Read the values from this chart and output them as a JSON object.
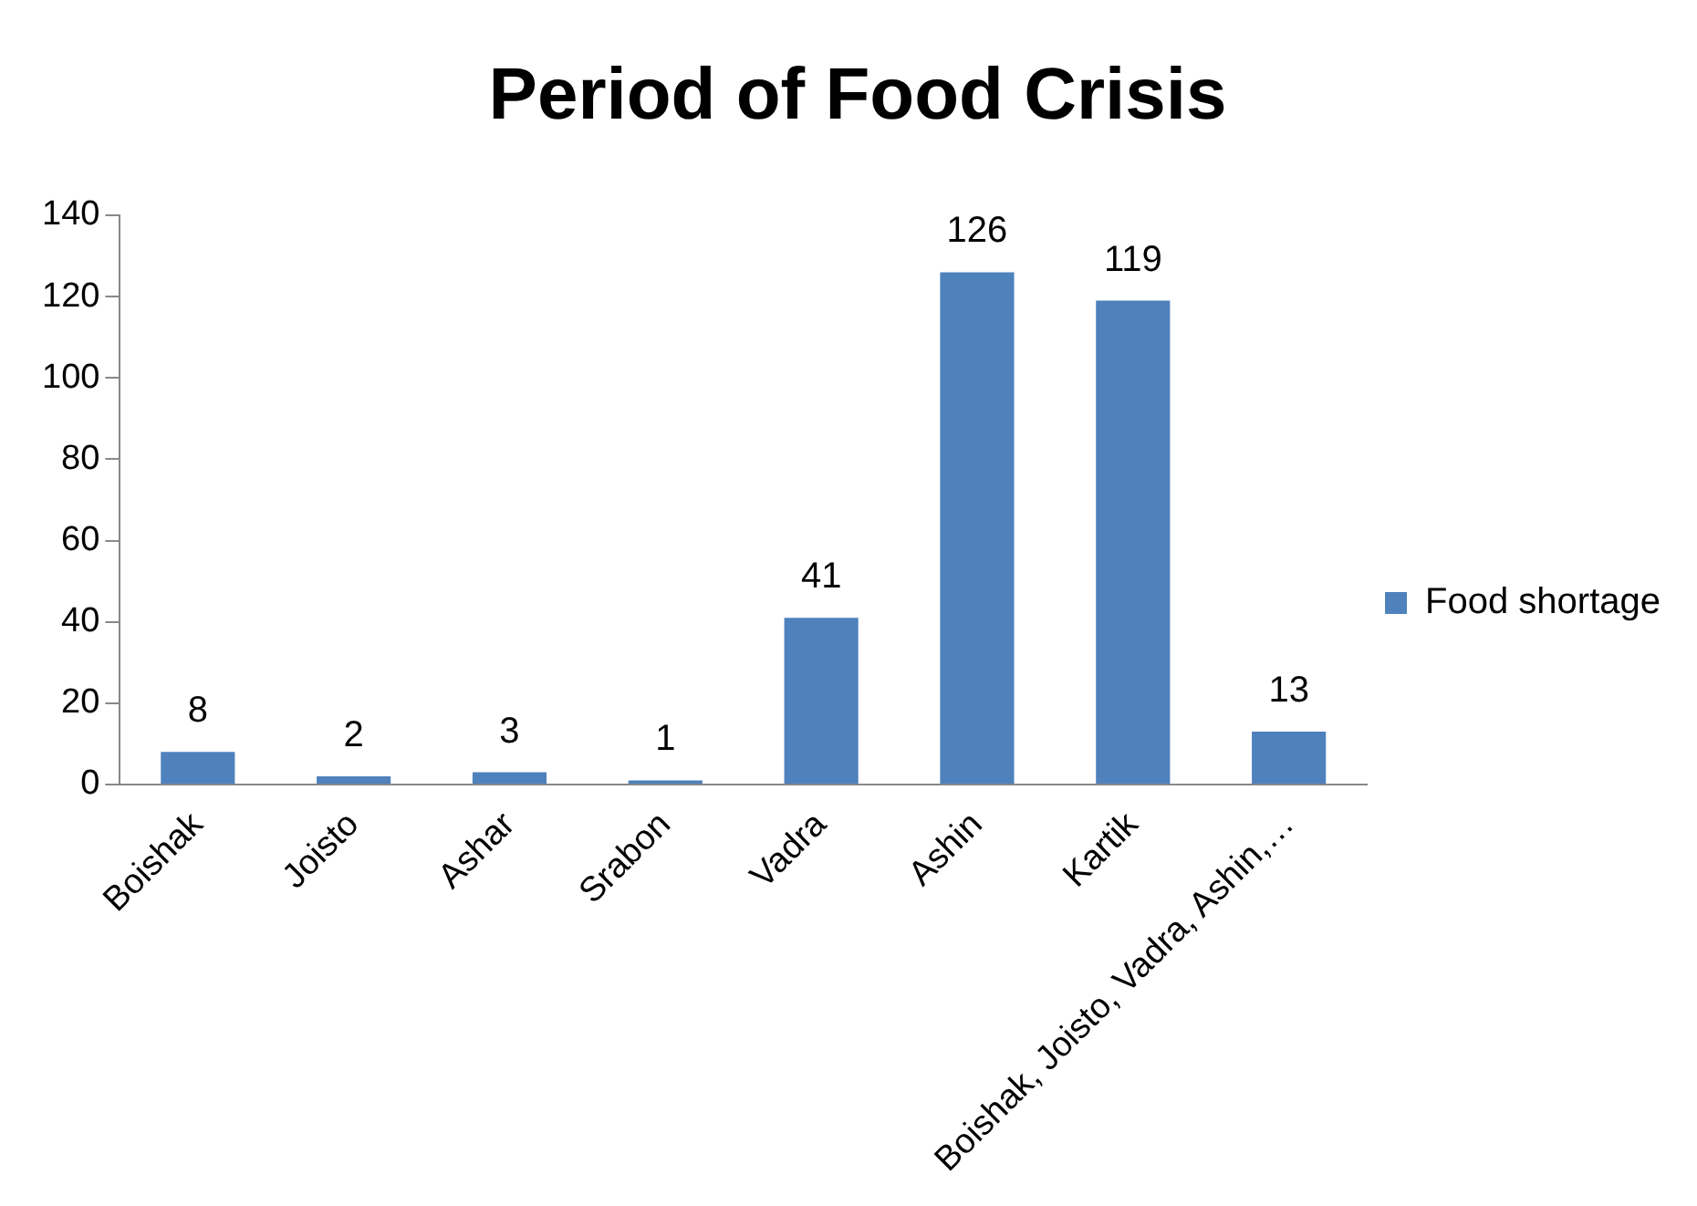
{
  "chart_data": {
    "type": "bar",
    "title": "Period of Food Crisis",
    "categories": [
      "Boishak",
      "Joisto",
      "Ashar",
      "Srabon",
      "Vadra",
      "Ashin",
      "Kartik",
      "Boishak, Joisto, Vadra, Ashin,…"
    ],
    "series": [
      {
        "name": "Food shortage",
        "color": "#4f81bd",
        "values": [
          8,
          2,
          3,
          1,
          41,
          126,
          119,
          13
        ]
      }
    ],
    "ylim": [
      0,
      140
    ],
    "yticks": [
      0,
      20,
      40,
      60,
      80,
      100,
      120,
      140
    ],
    "grid": false,
    "legend": "right",
    "data_labels": true
  }
}
